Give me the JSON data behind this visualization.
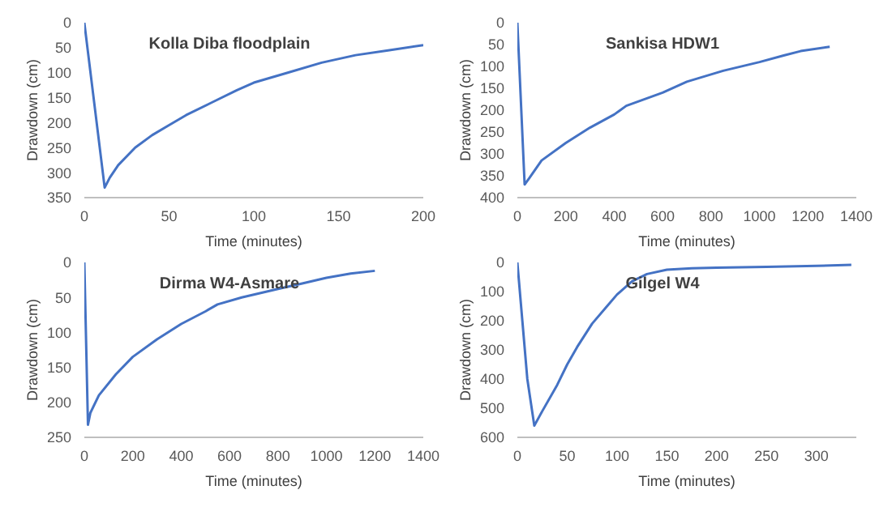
{
  "chart_data": [
    {
      "type": "line",
      "title": "Kolla Diba floodplain",
      "xlabel": "Time (minutes)",
      "ylabel": "Drawdown (cm)",
      "grid": false,
      "legend": false,
      "marker": "none",
      "line_style": "solid",
      "xlim": [
        0,
        200
      ],
      "xticks": [
        0,
        50,
        100,
        150,
        200
      ],
      "ylim": [
        350,
        0
      ],
      "yticks": [
        0,
        50,
        100,
        150,
        200,
        250,
        300,
        350
      ],
      "series": [
        {
          "color": "#4472c4",
          "x": [
            0,
            12,
            15,
            20,
            30,
            40,
            50,
            60,
            75,
            90,
            100,
            120,
            140,
            160,
            180,
            200
          ],
          "values": [
            0,
            330,
            310,
            285,
            250,
            225,
            205,
            185,
            160,
            135,
            120,
            100,
            80,
            65,
            55,
            45
          ]
        }
      ]
    },
    {
      "type": "line",
      "title": "Sankisa HDW1",
      "xlabel": "Time (minutes)",
      "ylabel": "Drawdown (cm)",
      "grid": false,
      "legend": false,
      "marker": "none",
      "line_style": "solid",
      "xlim": [
        0,
        1400
      ],
      "xticks": [
        0,
        200,
        400,
        600,
        800,
        1000,
        1200,
        1400
      ],
      "ylim": [
        400,
        0
      ],
      "yticks": [
        0,
        50,
        100,
        150,
        200,
        250,
        300,
        350,
        400
      ],
      "series": [
        {
          "color": "#4472c4",
          "x": [
            0,
            30,
            50,
            100,
            200,
            300,
            400,
            450,
            600,
            700,
            850,
            1000,
            1100,
            1170,
            1290
          ],
          "values": [
            0,
            370,
            355,
            315,
            275,
            240,
            210,
            190,
            160,
            135,
            110,
            90,
            75,
            65,
            55
          ]
        }
      ]
    },
    {
      "type": "line",
      "title": "Dirma W4-Asmare",
      "xlabel": "Time (minutes)",
      "ylabel": "Drawdown (cm)",
      "grid": false,
      "legend": false,
      "marker": "none",
      "line_style": "solid",
      "xlim": [
        0,
        1400
      ],
      "xticks": [
        0,
        200,
        400,
        600,
        800,
        1000,
        1200,
        1400
      ],
      "ylim": [
        250,
        0
      ],
      "yticks": [
        0,
        50,
        100,
        150,
        200,
        250
      ],
      "series": [
        {
          "color": "#4472c4",
          "x": [
            0,
            15,
            25,
            60,
            130,
            200,
            300,
            400,
            500,
            550,
            650,
            800,
            900,
            1000,
            1100,
            1200
          ],
          "values": [
            0,
            232,
            215,
            190,
            160,
            135,
            110,
            88,
            70,
            60,
            50,
            38,
            30,
            22,
            16,
            12
          ]
        }
      ]
    },
    {
      "type": "line",
      "title": "Gilgel W4",
      "xlabel": "Time (minutes)",
      "ylabel": "Drawdown (cm)",
      "grid": false,
      "legend": false,
      "marker": "none",
      "line_style": "solid",
      "xlim": [
        0,
        340
      ],
      "xticks": [
        0,
        50,
        100,
        150,
        200,
        250,
        300
      ],
      "ylim": [
        600,
        0
      ],
      "yticks": [
        0,
        100,
        200,
        300,
        400,
        500,
        600
      ],
      "series": [
        {
          "color": "#4472c4",
          "x": [
            0,
            5,
            10,
            17,
            25,
            40,
            50,
            60,
            75,
            90,
            100,
            115,
            130,
            150,
            175,
            200,
            250,
            300,
            335
          ],
          "values": [
            0,
            200,
            400,
            560,
            510,
            420,
            350,
            290,
            210,
            150,
            110,
            65,
            40,
            25,
            20,
            18,
            15,
            12,
            8
          ]
        }
      ]
    }
  ]
}
